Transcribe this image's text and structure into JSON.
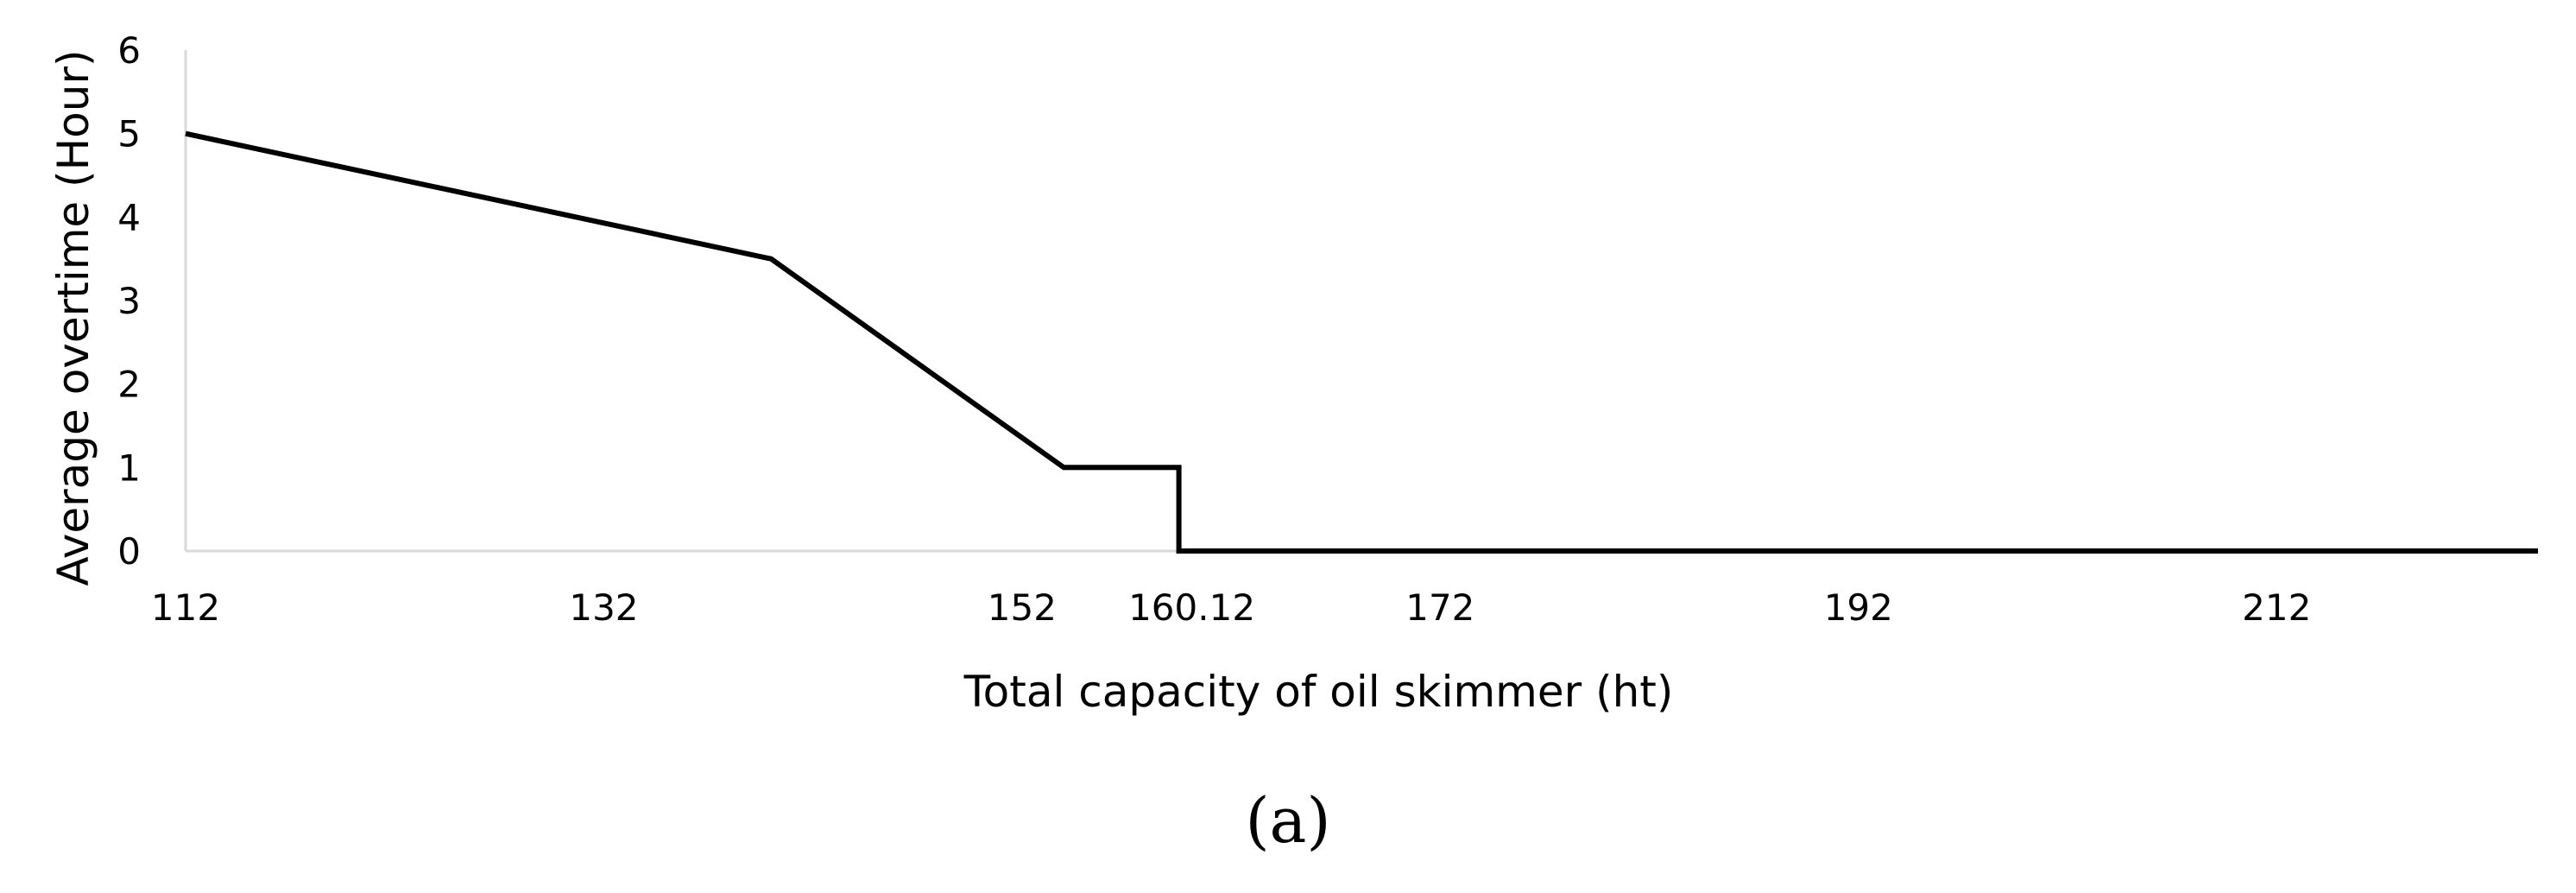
{
  "chart_data": {
    "type": "line",
    "title": "",
    "xlabel": "Total capacity of oil skimmer (ht)",
    "ylabel": "Average overtime (Hour)",
    "xlim": [
      112,
      224.5
    ],
    "ylim": [
      0,
      6
    ],
    "x_ticks": [
      {
        "value": 112,
        "label": "112"
      },
      {
        "value": 132,
        "label": "132"
      },
      {
        "value": 152,
        "label": "152"
      },
      {
        "value": 160.12,
        "label": "160.12"
      },
      {
        "value": 172,
        "label": "172"
      },
      {
        "value": 192,
        "label": "192"
      },
      {
        "value": 212,
        "label": "212"
      }
    ],
    "y_ticks": [
      "0",
      "1",
      "2",
      "3",
      "4",
      "5",
      "6"
    ],
    "grid": false,
    "legend": "none",
    "line_color": "#000000",
    "axis_color": "#d9d9d9",
    "series": [
      {
        "x": [
          112,
          140,
          154,
          159.5,
          159.5,
          224.5
        ],
        "y": [
          5,
          3.5,
          1,
          1,
          0,
          0
        ]
      }
    ]
  },
  "caption": "(a)"
}
